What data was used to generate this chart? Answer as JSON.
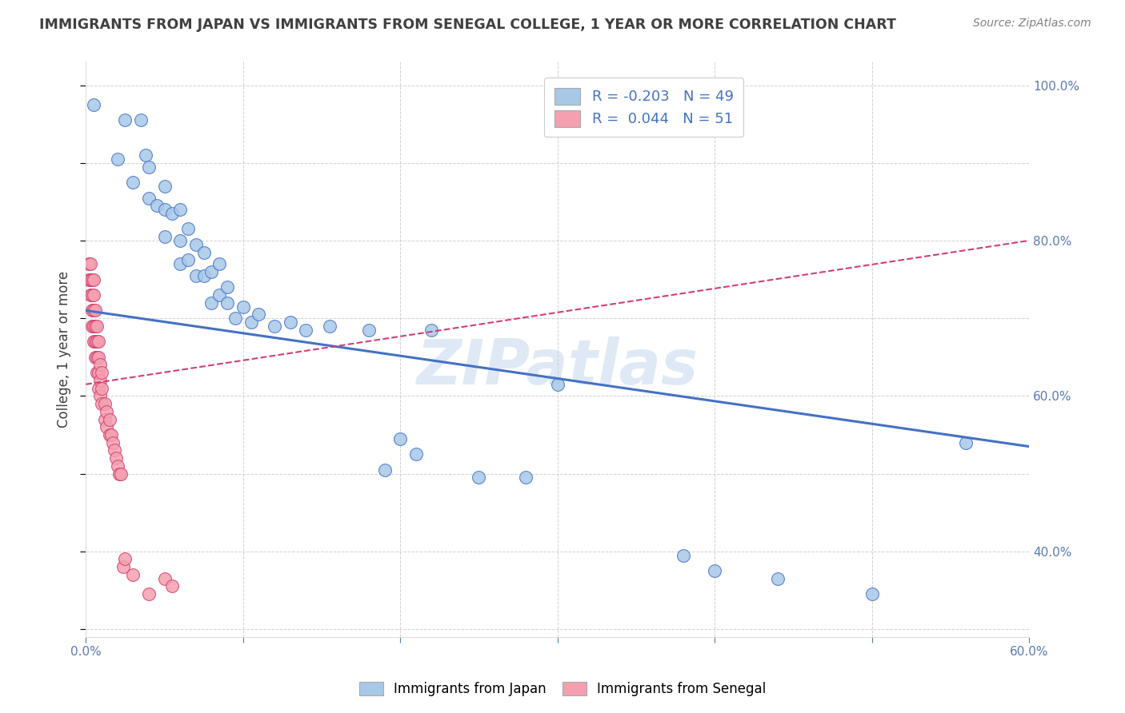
{
  "title": "IMMIGRANTS FROM JAPAN VS IMMIGRANTS FROM SENEGAL COLLEGE, 1 YEAR OR MORE CORRELATION CHART",
  "source_text": "Source: ZipAtlas.com",
  "ylabel": "College, 1 year or more",
  "xlim": [
    0.0,
    0.6
  ],
  "ylim": [
    0.29,
    1.03
  ],
  "legend_label_blue": "Immigrants from Japan",
  "legend_label_pink": "Immigrants from Senegal",
  "watermark": "ZIPatlas",
  "blue_scatter_x": [
    0.005,
    0.02,
    0.025,
    0.03,
    0.035,
    0.038,
    0.04,
    0.04,
    0.045,
    0.05,
    0.05,
    0.05,
    0.055,
    0.06,
    0.06,
    0.06,
    0.065,
    0.065,
    0.07,
    0.07,
    0.075,
    0.075,
    0.08,
    0.08,
    0.085,
    0.085,
    0.09,
    0.09,
    0.095,
    0.1,
    0.105,
    0.11,
    0.12,
    0.13,
    0.14,
    0.155,
    0.18,
    0.19,
    0.2,
    0.21,
    0.22,
    0.25,
    0.28,
    0.3,
    0.38,
    0.4,
    0.44,
    0.5,
    0.56
  ],
  "blue_scatter_y": [
    0.975,
    0.905,
    0.955,
    0.875,
    0.955,
    0.91,
    0.855,
    0.895,
    0.845,
    0.87,
    0.84,
    0.805,
    0.835,
    0.8,
    0.84,
    0.77,
    0.775,
    0.815,
    0.755,
    0.795,
    0.755,
    0.785,
    0.72,
    0.76,
    0.73,
    0.77,
    0.72,
    0.74,
    0.7,
    0.715,
    0.695,
    0.705,
    0.69,
    0.695,
    0.685,
    0.69,
    0.685,
    0.505,
    0.545,
    0.525,
    0.685,
    0.495,
    0.495,
    0.615,
    0.395,
    0.375,
    0.365,
    0.345,
    0.54
  ],
  "pink_scatter_x": [
    0.002,
    0.002,
    0.003,
    0.003,
    0.003,
    0.004,
    0.004,
    0.004,
    0.004,
    0.005,
    0.005,
    0.005,
    0.005,
    0.005,
    0.006,
    0.006,
    0.006,
    0.006,
    0.007,
    0.007,
    0.007,
    0.007,
    0.008,
    0.008,
    0.008,
    0.008,
    0.009,
    0.009,
    0.009,
    0.01,
    0.01,
    0.01,
    0.012,
    0.012,
    0.013,
    0.013,
    0.015,
    0.015,
    0.016,
    0.017,
    0.018,
    0.019,
    0.02,
    0.021,
    0.022,
    0.024,
    0.025,
    0.03,
    0.04,
    0.05,
    0.055
  ],
  "pink_scatter_y": [
    0.75,
    0.77,
    0.73,
    0.75,
    0.77,
    0.69,
    0.71,
    0.73,
    0.75,
    0.67,
    0.69,
    0.71,
    0.73,
    0.75,
    0.65,
    0.67,
    0.69,
    0.71,
    0.63,
    0.65,
    0.67,
    0.69,
    0.61,
    0.63,
    0.65,
    0.67,
    0.6,
    0.62,
    0.64,
    0.59,
    0.61,
    0.63,
    0.57,
    0.59,
    0.56,
    0.58,
    0.55,
    0.57,
    0.55,
    0.54,
    0.53,
    0.52,
    0.51,
    0.5,
    0.5,
    0.38,
    0.39,
    0.37,
    0.345,
    0.365,
    0.355
  ],
  "blue_line_x": [
    0.0,
    0.6
  ],
  "blue_line_y": [
    0.71,
    0.535
  ],
  "pink_line_x": [
    0.0,
    0.6
  ],
  "pink_line_y": [
    0.615,
    0.8
  ],
  "blue_color": "#a8c8e8",
  "blue_line_color": "#4472c4",
  "pink_color": "#f4a0b0",
  "pink_line_color": "#d04070",
  "background_color": "#ffffff",
  "grid_color": "#cccccc",
  "title_color": "#404040",
  "source_color": "#808080",
  "axis_label_color": "#5a7ab5",
  "right_tick_color": "#5a7ab5"
}
